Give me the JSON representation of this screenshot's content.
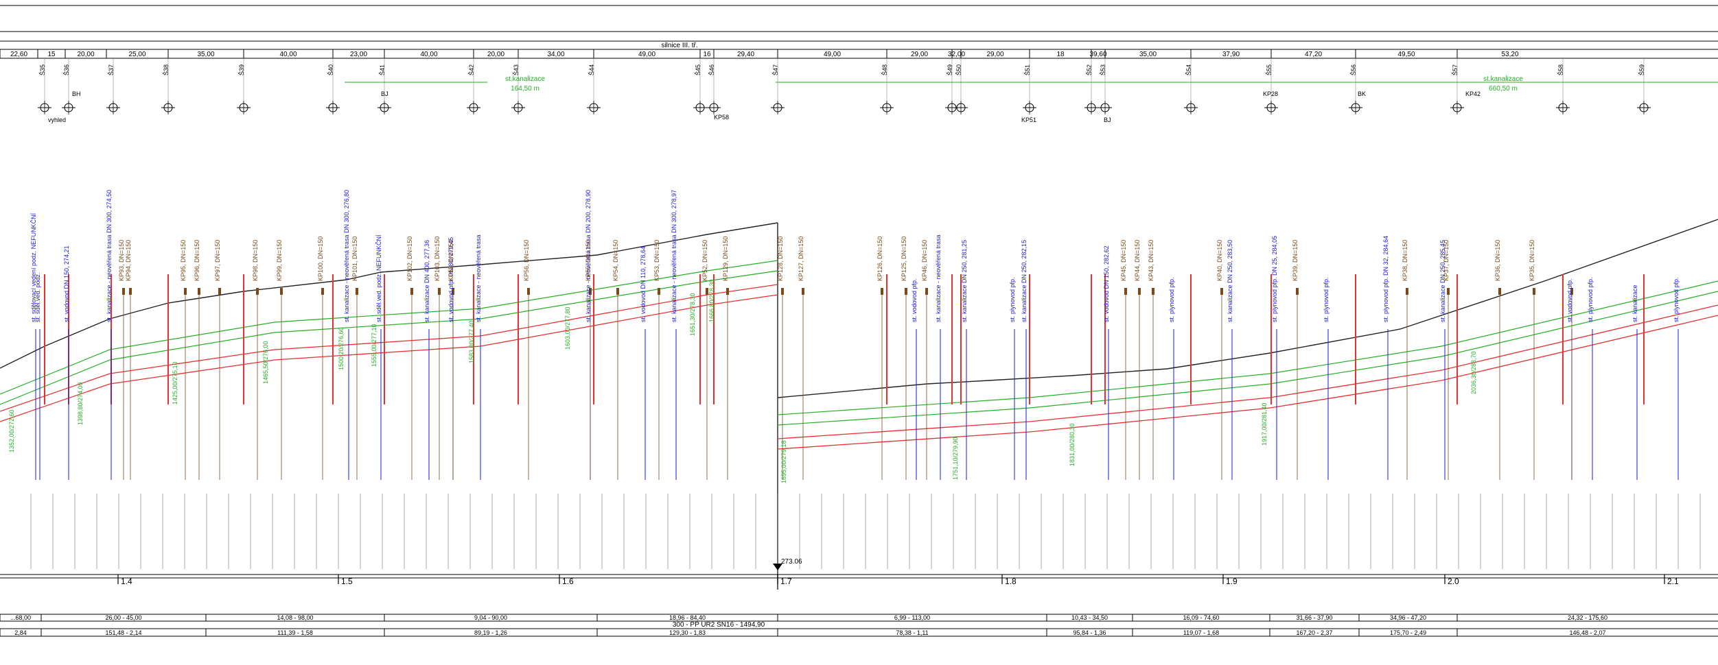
{
  "header": {
    "road_label": "silnice III. tř.",
    "segment_lengths": [
      "22,60",
      "15",
      "20,00",
      "25,00",
      "35,00",
      "40,00",
      "23,00",
      "40,00",
      "20,00",
      "34,00",
      "49,00",
      "16",
      "29,40",
      "49,00",
      "29,00",
      "32,00",
      "29,00",
      "18",
      "39,60",
      "35,00",
      "37,90",
      "47,20",
      "49,50",
      "53,20"
    ]
  },
  "manholes": [
    "Š35",
    "Š36",
    "Š37",
    "Š38",
    "Š39",
    "Š40",
    "Š41",
    "Š42",
    "Š43",
    "Š44",
    "Š45",
    "Š46",
    "Š47",
    "Š48",
    "Š49",
    "Š50",
    "Š51",
    "Š52",
    "Š53",
    "Š54",
    "Š55",
    "Š56",
    "Š57",
    "Š58",
    "Š59"
  ],
  "sewer_labels": [
    {
      "text": "st.kanalizace",
      "length": "164,50 m"
    },
    {
      "text": "st.kanalizace",
      "length": "660,50 m"
    }
  ],
  "symbols": {
    "labels": [
      "vyhled",
      "BH",
      "BJ",
      "KP58",
      "KP51",
      "BJ",
      "KP28",
      "BK",
      "KP42"
    ]
  },
  "crossings": {
    "blue_labels": [
      "st. sdělovací vedení podz. NEFUNKČNÍ",
      "st. sděl.ved. podz.",
      "st. vodovod DN 150, 274,21",
      "st. kanalizace - neověřená trasa DN 300, 274,50",
      "st. kanalizace - neověřená trasa DN 300, 276,80",
      "st. sděl.ved. podz. NEFUNKČNÍ",
      "st. kanalizace DN 400, 277,36",
      "st. vodovod pfp. DN 80, 279,45",
      "st. kanalizace - neověřená trasa",
      "st. kanalizace - neověřená trasa DN 200, 278,90",
      "st. vodovod DN 110, 278,64",
      "st. kanalizace - neověřená trasa DN 300, 278,97",
      "st. vodovod pfp.",
      "st. kanalizace - neověřená trasa",
      "st. kanalizace DN 250, 281,25",
      "st. plynovod pfp.",
      "st. kanalizace DN 250, 282,15",
      "st. vodovod DN 150, 282,62",
      "st. plynovod pfp.",
      "st. kanalizace DN 250, 283,50",
      "st. plynovod pfp. DN 25, 284,05",
      "st. plynovod pfp.",
      "st. plynovod pfp. DN 32, 284,64",
      "st. kanalizace DN 250, 285,45",
      "st. vodovod pfp.",
      "st. plynovod pfp.",
      "st. kanalizace",
      "st. plynovod pfp."
    ],
    "brown_labels": [
      "KP93, DN=150",
      "KP94, DN=150",
      "KP95, DN=150",
      "KP96, DN=150",
      "KP97, DN=150",
      "KP98, DN=150",
      "KP99, DN=150",
      "KP100, DN=150",
      "KP101, DN=150",
      "KP102, DN=150",
      "KP103, DN=150",
      "KP57, DN=150",
      "KP19, DN=150",
      "KP56, DN=150",
      "KP55, DN=150",
      "KP54, DN=150",
      "KP53, DN=150",
      "KP52, DN=150",
      "KP129, DN=150",
      "KP128, DN=150",
      "KP127, DN=150",
      "KP126, DN=150",
      "KP125, DN=150",
      "KP46, DN=150",
      "KP45, DN=150",
      "KP44, DN=150",
      "KP43, DN=150",
      "KP40, DN=150",
      "KP39, DN=150",
      "KP38, DN=150",
      "KP37, DN=150",
      "KP36, DN=150",
      "KP35, DN=150"
    ],
    "green_labels": [
      "1352,00/272,60",
      "1398,80/274,00",
      "1425,00/275,10",
      "1465,50/276,00",
      "1500,20/276,60",
      "1555,00/277,10",
      "1583,00/277,40",
      "1603,00/277,80",
      "1651,30/278,30",
      "1666,80/278,30",
      "1695,00/279,18",
      "1751,10/279,90",
      "1831,00/280,30",
      "1917,00/281,40",
      "2036,30/283,70"
    ]
  },
  "stationing": {
    "km_labels": [
      "1.4",
      "1.5",
      "1.6",
      "1.7",
      "1.8",
      "1.9",
      "2.0",
      "2.1"
    ],
    "special_point": "273.06"
  },
  "bottom_bands": {
    "row1": [
      "...68,00",
      "26,00 - 45,00",
      "14,08 - 98,00",
      "9,04 - 90,00",
      "18,96 - 84,40",
      "6,99 - 113,00",
      "10,43 - 34,50",
      "16,09 - 74,60",
      "31,66 - 37,90",
      "34,96 - 47,20",
      "24,32 - 175,60"
    ],
    "row2_center": "300 - PP UR2 SN16 - 1494,90",
    "row3": [
      "2,84",
      "151,48 - 2,14",
      "111,39 - 1,58",
      "89,19 - 1,26",
      "129,30 - 1,83",
      "78,38 - 1,11",
      "95,84 - 1,36",
      "119,07 - 1,68",
      "167,20 - 2,37",
      "175,70 - 2,49",
      "146,48 - 2,07"
    ]
  },
  "colors": {
    "terrain": "#222222",
    "design_pipe": "#e83030",
    "existing_green": "#22b022",
    "crossing_blue": "#1a1adc",
    "label_brown": "#7a4a1a"
  }
}
